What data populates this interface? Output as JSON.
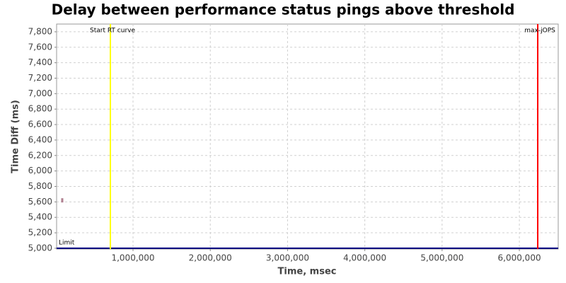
{
  "chart_data": {
    "type": "scatter",
    "title": "Delay between performance status pings above threshold",
    "x_label": "Time, msec",
    "y_label": "Time Diff (ms)",
    "xlim": [
      11000,
      6503000
    ],
    "ylim": [
      4990,
      7900
    ],
    "xticks": [
      {
        "value": 1000000,
        "label": "1,000,000"
      },
      {
        "value": 2000000,
        "label": "2,000,000"
      },
      {
        "value": 3000000,
        "label": "3,000,000"
      },
      {
        "value": 4000000,
        "label": "4,000,000"
      },
      {
        "value": 5000000,
        "label": "5,000,000"
      },
      {
        "value": 6000000,
        "label": "6,000,000"
      }
    ],
    "yticks": [
      {
        "value": 5000,
        "label": "5,000"
      },
      {
        "value": 5200,
        "label": "5,200"
      },
      {
        "value": 5400,
        "label": "5,400"
      },
      {
        "value": 5600,
        "label": "5,600"
      },
      {
        "value": 5800,
        "label": "5,800"
      },
      {
        "value": 6000,
        "label": "6,000"
      },
      {
        "value": 6200,
        "label": "6,200"
      },
      {
        "value": 6400,
        "label": "6,400"
      },
      {
        "value": 6600,
        "label": "6,600"
      },
      {
        "value": 6800,
        "label": "6,800"
      },
      {
        "value": 7000,
        "label": "7,000"
      },
      {
        "value": 7200,
        "label": "7,200"
      },
      {
        "value": 7400,
        "label": "7,400"
      },
      {
        "value": 7600,
        "label": "7,600"
      },
      {
        "value": 7800,
        "label": "7,800"
      }
    ],
    "grid": true,
    "series": [
      {
        "color": "#b08090",
        "x": [
          84000
        ],
        "values": [
          5620
        ]
      }
    ],
    "markers": [
      {
        "label": "Start RT curve",
        "x": 707000,
        "color": "#ffff00"
      },
      {
        "label": "max-jOPS",
        "x": 6238000,
        "color": "#ff0000"
      }
    ],
    "hlines": [
      {
        "label": "Limit",
        "value": 5000,
        "color": "#000080"
      }
    ]
  }
}
